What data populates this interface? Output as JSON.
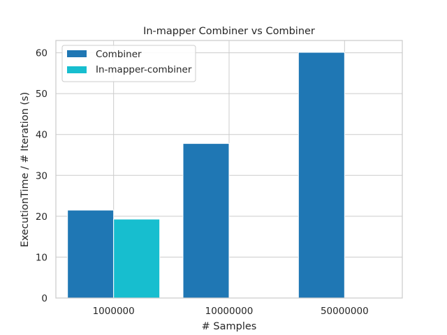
{
  "chart_data": {
    "type": "bar",
    "title": "In-mapper Combiner vs Combiner",
    "xlabel": "# Samples",
    "ylabel": "ExecutionTime / # Iteration (s)",
    "categories": [
      "1000000",
      "10000000",
      "50000000"
    ],
    "series": [
      {
        "name": "Combiner",
        "color": "#1f77b4",
        "values": [
          21.5,
          37.8,
          60.1
        ]
      },
      {
        "name": "In-mapper-combiner",
        "color": "#17becf",
        "values": [
          19.3,
          null,
          null
        ]
      }
    ],
    "ylim": [
      0,
      63
    ],
    "yticks": [
      0,
      10,
      20,
      30,
      40,
      50,
      60
    ],
    "grid": true,
    "legend_position": "top-left"
  }
}
